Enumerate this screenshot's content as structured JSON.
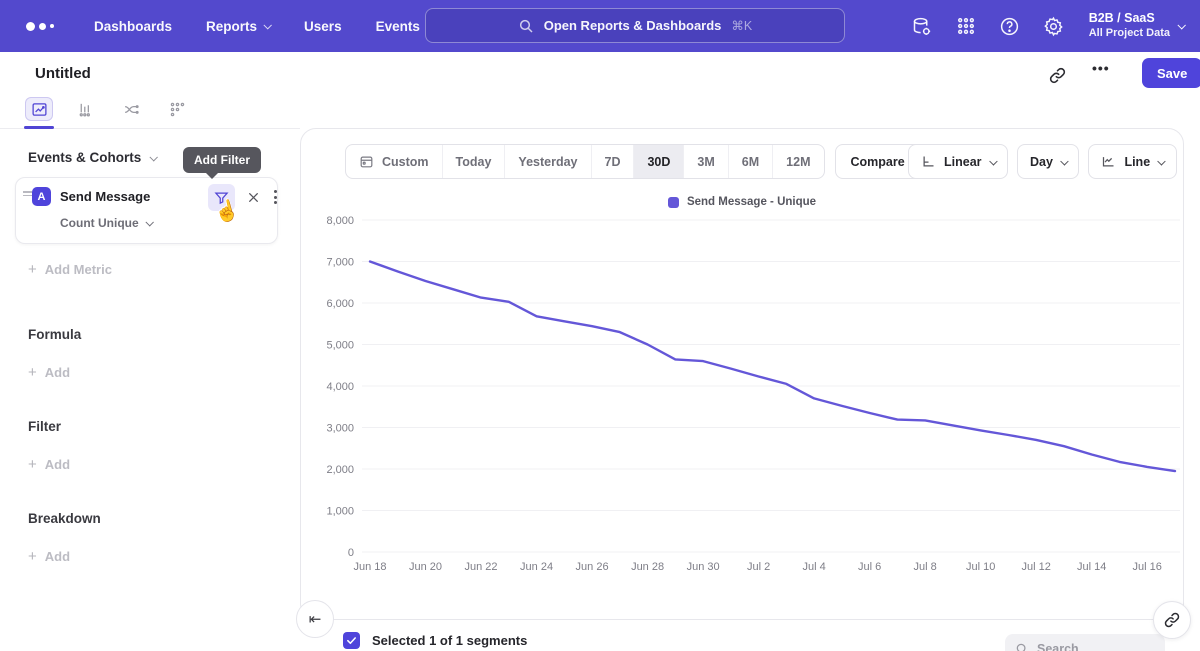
{
  "header": {
    "nav": [
      {
        "label": "Dashboards",
        "caret": false
      },
      {
        "label": "Reports",
        "caret": true
      },
      {
        "label": "Users",
        "caret": false
      },
      {
        "label": "Events",
        "caret": false
      }
    ],
    "search": {
      "placeholder": "Open Reports & Dashboards",
      "shortcut": "⌘K"
    },
    "icons": [
      "data-connections-icon",
      "apps-grid-icon",
      "help-icon",
      "settings-icon"
    ],
    "project": {
      "name": "B2B / SaaS",
      "subtitle": "All Project Data"
    }
  },
  "title_bar": {
    "title": "Untitled",
    "more_label": "•••",
    "save_label": "Save"
  },
  "report_tabs": [
    "insights",
    "bars",
    "flows",
    "retention"
  ],
  "query_panel": {
    "events_header": "Events & Cohorts",
    "metric": {
      "letter": "A",
      "event": "Send Message",
      "aggregation": "Count Unique"
    },
    "tooltip": "Add Filter",
    "add_metric_label": "Add Metric",
    "sections": [
      {
        "title": "Formula",
        "add_label": "Add"
      },
      {
        "title": "Filter",
        "add_label": "Add"
      },
      {
        "title": "Breakdown",
        "add_label": "Add"
      }
    ]
  },
  "toolbar": {
    "date_ranges": [
      "Custom",
      "Today",
      "Yesterday",
      "7D",
      "30D",
      "3M",
      "6M",
      "12M"
    ],
    "active_range": "30D",
    "compare_label": "Compare to Past",
    "scale_label": "Linear",
    "granularity_label": "Day",
    "chart_type_label": "Line"
  },
  "chart_data": {
    "type": "line",
    "legend_position": "top",
    "grid": true,
    "ylim": [
      0,
      8000
    ],
    "ytick_step": 1000,
    "x": [
      "Jun 18",
      "Jun 19",
      "Jun 20",
      "Jun 21",
      "Jun 22",
      "Jun 23",
      "Jun 24",
      "Jun 25",
      "Jun 26",
      "Jun 27",
      "Jun 28",
      "Jun 29",
      "Jun 30",
      "Jul 1",
      "Jul 2",
      "Jul 3",
      "Jul 4",
      "Jul 5",
      "Jul 6",
      "Jul 7",
      "Jul 8",
      "Jul 9",
      "Jul 10",
      "Jul 11",
      "Jul 12",
      "Jul 13",
      "Jul 14",
      "Jul 15",
      "Jul 16",
      "Jul 17"
    ],
    "x_tick_labels": [
      "Jun 18",
      "Jun 20",
      "Jun 22",
      "Jun 24",
      "Jun 26",
      "Jun 28",
      "Jun 30",
      "Jul 2",
      "Jul 4",
      "Jul 6",
      "Jul 8",
      "Jul 10",
      "Jul 12",
      "Jul 14",
      "Jul 16"
    ],
    "x_tick_every": 2,
    "series": [
      {
        "name": "Send Message - Unique",
        "color": "#6457d8",
        "values": [
          7000,
          6760,
          6530,
          6330,
          6130,
          6030,
          5680,
          5560,
          5440,
          5300,
          5000,
          4640,
          4600,
          4420,
          4230,
          4050,
          3700,
          3520,
          3350,
          3190,
          3170,
          3050,
          2930,
          2820,
          2700,
          2550,
          2350,
          2170,
          2050,
          1950
        ]
      }
    ]
  },
  "footer": {
    "selected_label": "Selected 1 of 1 segments",
    "search_placeholder": "Search"
  },
  "colors": {
    "header_bg": "#5349cd",
    "accent": "#4f44db",
    "line": "#6457d8",
    "tooltip_bg": "#56565d"
  }
}
